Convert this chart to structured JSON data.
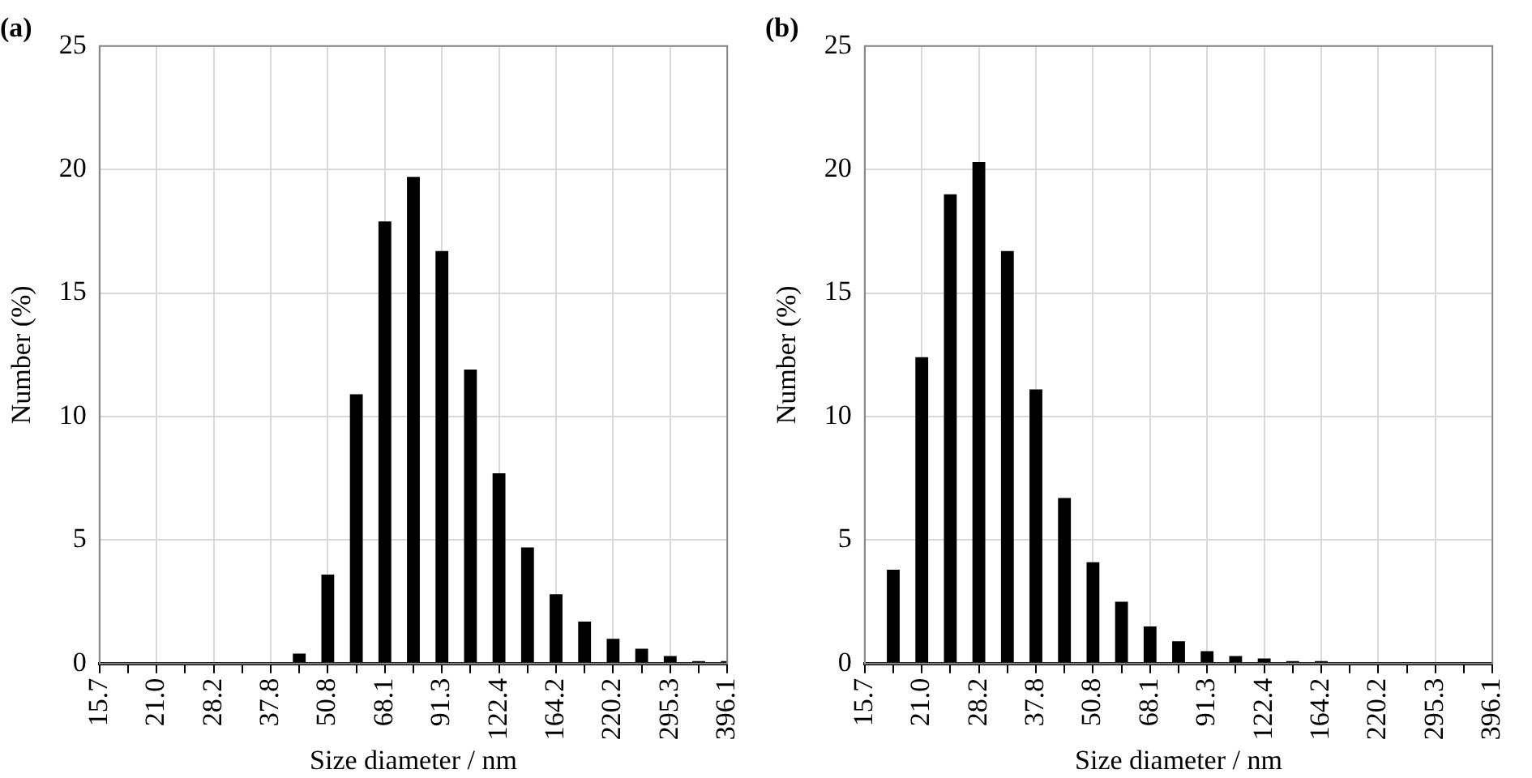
{
  "chart_data": [
    {
      "type": "bar",
      "title": "(a)",
      "xlabel": "Size diameter / nm",
      "ylabel": "Number (%)",
      "categories": [
        "15.7",
        null,
        "21.0",
        null,
        "28.2",
        null,
        "37.8",
        null,
        "50.8",
        null,
        "68.1",
        null,
        "91.3",
        null,
        "122.4",
        null,
        "164.2",
        null,
        "220.2",
        null,
        "295.3",
        null,
        "396.1"
      ],
      "values": [
        0,
        0,
        0,
        0,
        0,
        0,
        0,
        0.4,
        3.6,
        10.9,
        17.9,
        19.7,
        16.7,
        11.9,
        7.7,
        4.7,
        2.8,
        1.7,
        1.0,
        0.6,
        0.3,
        0.1,
        0.1
      ],
      "color": "#000000",
      "ylim": [
        0,
        25
      ],
      "yticks": [
        0,
        5,
        10,
        15,
        20,
        25
      ],
      "grid": true,
      "legend": false
    },
    {
      "type": "bar",
      "title": "(b)",
      "xlabel": "Size diameter / nm",
      "ylabel": "Number (%)",
      "categories": [
        "15.7",
        null,
        "21.0",
        null,
        "28.2",
        null,
        "37.8",
        null,
        "50.8",
        null,
        "68.1",
        null,
        "91.3",
        null,
        "122.4",
        null,
        "164.2",
        null,
        "220.2",
        null,
        "295.3",
        null,
        "396.1"
      ],
      "values": [
        0,
        3.8,
        12.4,
        19.0,
        20.3,
        16.7,
        11.1,
        6.7,
        4.1,
        2.5,
        1.5,
        0.9,
        0.5,
        0.3,
        0.2,
        0.1,
        0.1,
        0,
        0,
        0,
        0,
        0,
        0
      ],
      "color": "#000000",
      "ylim": [
        0,
        25
      ],
      "yticks": [
        0,
        5,
        10,
        15,
        20,
        25
      ],
      "grid": true,
      "legend": false
    }
  ]
}
